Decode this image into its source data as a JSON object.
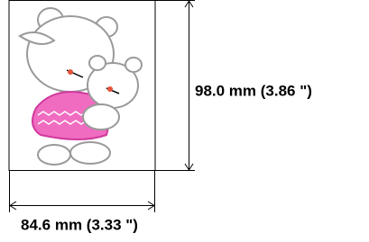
{
  "width_label": "84.6 mm (3.33 \")",
  "height_label": "98.0 mm (3.86 \")"
}
